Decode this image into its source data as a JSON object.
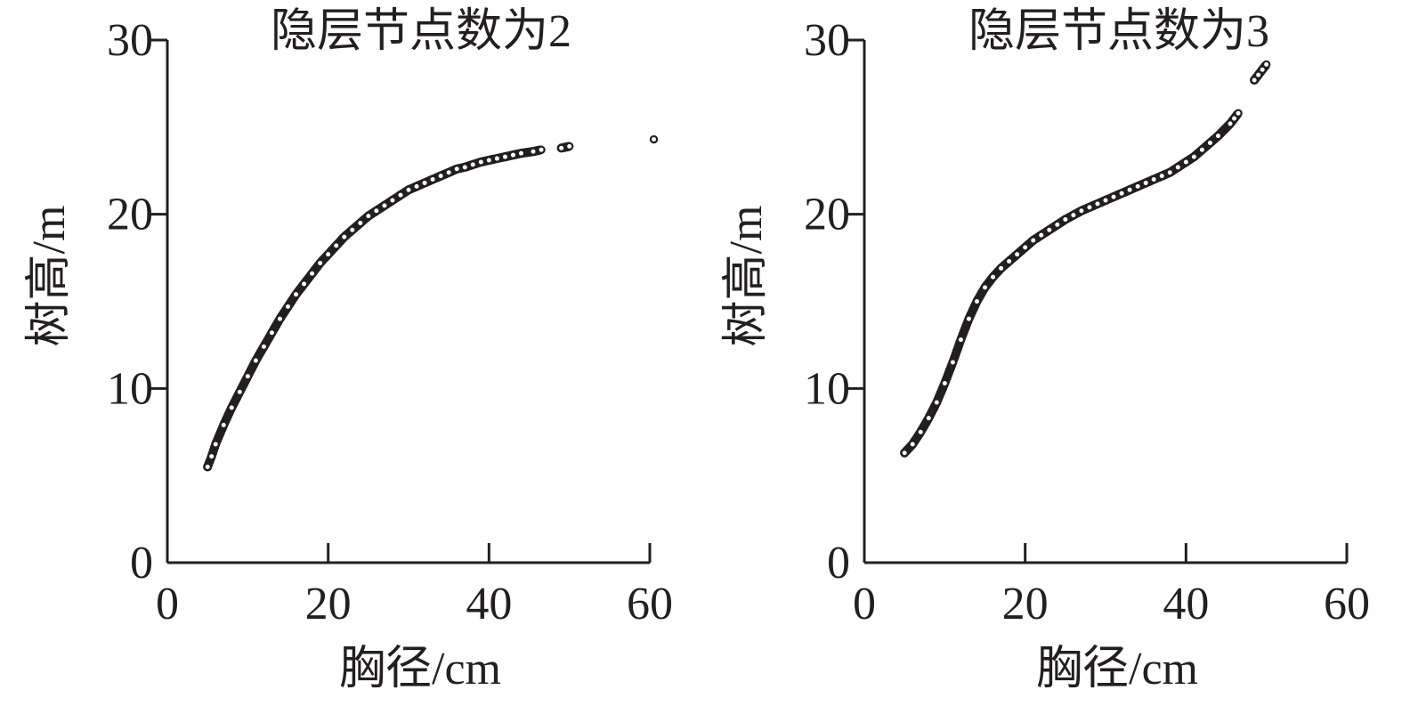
{
  "chart_data": [
    {
      "type": "scatter",
      "title": "隐层节点数为2",
      "xlabel": "胸径/cm",
      "ylabel": "树高/m",
      "xlim": [
        0,
        60
      ],
      "ylim": [
        0,
        30
      ],
      "xticks": [
        0,
        20,
        40,
        60
      ],
      "yticks": [
        0,
        10,
        20,
        30
      ],
      "grid": false,
      "marker_color": "#231f20",
      "series": [
        {
          "points": [
            [
              5.0,
              5.5
            ],
            [
              5.5,
              6.1
            ],
            [
              6.0,
              6.8
            ],
            [
              7.0,
              7.9
            ],
            [
              8.0,
              8.9
            ],
            [
              9.0,
              9.8
            ],
            [
              10.0,
              10.7
            ],
            [
              11.0,
              11.6
            ],
            [
              12.0,
              12.4
            ],
            [
              13.0,
              13.2
            ],
            [
              14.0,
              14.0
            ],
            [
              15.0,
              14.7
            ],
            [
              16.0,
              15.4
            ],
            [
              17.0,
              16.0
            ],
            [
              18.0,
              16.6
            ],
            [
              19.0,
              17.2
            ],
            [
              20.0,
              17.7
            ],
            [
              21.0,
              18.2
            ],
            [
              22.0,
              18.7
            ],
            [
              23.0,
              19.1
            ],
            [
              24.0,
              19.5
            ],
            [
              25.0,
              19.9
            ],
            [
              26.0,
              20.2
            ],
            [
              27.0,
              20.5
            ],
            [
              28.0,
              20.8
            ],
            [
              29.0,
              21.1
            ],
            [
              30.0,
              21.4
            ],
            [
              31.0,
              21.6
            ],
            [
              32.0,
              21.8
            ],
            [
              33.0,
              22.0
            ],
            [
              34.0,
              22.2
            ],
            [
              35.0,
              22.4
            ],
            [
              36.0,
              22.6
            ],
            [
              37.0,
              22.7
            ],
            [
              38.0,
              22.85
            ],
            [
              39.0,
              23.0
            ],
            [
              40.0,
              23.1
            ],
            [
              41.0,
              23.2
            ],
            [
              42.0,
              23.3
            ],
            [
              43.0,
              23.4
            ],
            [
              44.0,
              23.5
            ],
            [
              45.5,
              23.6
            ],
            [
              46.5,
              23.7
            ],
            [
              49.0,
              23.8
            ],
            [
              50.0,
              23.9
            ],
            [
              60.5,
              24.3
            ]
          ]
        }
      ]
    },
    {
      "type": "scatter",
      "title": "隐层节点数为3",
      "xlabel": "胸径/cm",
      "ylabel": "树高/m",
      "xlim": [
        0,
        60
      ],
      "ylim": [
        0,
        30
      ],
      "xticks": [
        0,
        20,
        40,
        60
      ],
      "yticks": [
        0,
        10,
        20,
        30
      ],
      "grid": false,
      "marker_color": "#231f20",
      "series": [
        {
          "points": [
            [
              5.0,
              6.3
            ],
            [
              6.0,
              6.8
            ],
            [
              7.0,
              7.5
            ],
            [
              8.0,
              8.3
            ],
            [
              9.0,
              9.2
            ],
            [
              10.0,
              10.3
            ],
            [
              11.0,
              11.5
            ],
            [
              12.0,
              12.8
            ],
            [
              13.0,
              14.0
            ],
            [
              14.0,
              15.0
            ],
            [
              15.0,
              15.8
            ],
            [
              16.0,
              16.4
            ],
            [
              17.0,
              16.9
            ],
            [
              18.0,
              17.3
            ],
            [
              19.0,
              17.7
            ],
            [
              20.0,
              18.1
            ],
            [
              21.0,
              18.5
            ],
            [
              22.0,
              18.8
            ],
            [
              23.0,
              19.1
            ],
            [
              24.0,
              19.4
            ],
            [
              25.0,
              19.7
            ],
            [
              26.0,
              19.95
            ],
            [
              27.0,
              20.2
            ],
            [
              28.0,
              20.4
            ],
            [
              29.0,
              20.6
            ],
            [
              30.0,
              20.8
            ],
            [
              31.0,
              21.0
            ],
            [
              32.0,
              21.2
            ],
            [
              33.0,
              21.4
            ],
            [
              34.0,
              21.6
            ],
            [
              35.0,
              21.8
            ],
            [
              36.0,
              22.0
            ],
            [
              37.0,
              22.2
            ],
            [
              38.0,
              22.4
            ],
            [
              39.0,
              22.7
            ],
            [
              40.0,
              23.0
            ],
            [
              41.0,
              23.3
            ],
            [
              42.0,
              23.7
            ],
            [
              43.0,
              24.1
            ],
            [
              44.0,
              24.5
            ],
            [
              45.5,
              25.2
            ],
            [
              46.0,
              25.5
            ],
            [
              46.5,
              25.8
            ],
            [
              48.5,
              27.7
            ],
            [
              49.0,
              28.0
            ],
            [
              49.5,
              28.3
            ],
            [
              50.0,
              28.6
            ]
          ]
        }
      ]
    }
  ]
}
